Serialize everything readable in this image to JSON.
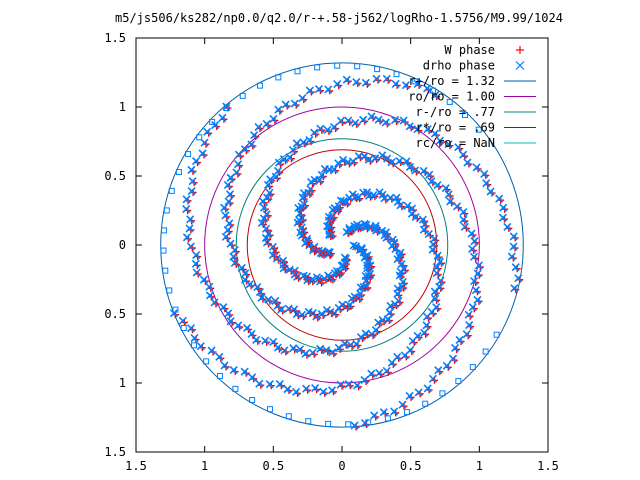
{
  "chart_data": {
    "type": "scatter",
    "title": "m5/js506/ks282/np0.0/q2.0/r-+.58-j562/logRho-1.5756/M9.99/1024",
    "xlabel": "",
    "ylabel": "",
    "xlim": [
      -1.5,
      1.5
    ],
    "ylim": [
      -1.5,
      1.5
    ],
    "x_ticks": [
      -1.5,
      -1,
      -0.5,
      0,
      0.5,
      1,
      1.5
    ],
    "x_tick_labels": [
      "1.5",
      "1",
      "0.5",
      "0",
      "0.5",
      "1",
      "1.5"
    ],
    "y_ticks": [
      1.5,
      1,
      0.5,
      0,
      -0.5,
      -1,
      -1.5
    ],
    "y_tick_labels": [
      "1.5",
      "1",
      "0.5",
      "0",
      "0.5",
      "1",
      "1.5"
    ],
    "grid": false,
    "legend_position": "top-right",
    "series": [
      {
        "name": "W phase",
        "kind": "points",
        "marker": "+",
        "color": "#ff0000",
        "description": "red plus markers tracing five trailing spiral arms from center r≈0.1 out to r≈1.3"
      },
      {
        "name": "drho phase",
        "kind": "points",
        "marker": "x",
        "color": "#0080ff",
        "description": "blue cross markers tracing the same five spiral arms, overlapping the W phase points"
      }
    ],
    "circles": [
      {
        "name": "r+/ro = 1.32",
        "radius": 1.32,
        "color": "#0060ad"
      },
      {
        "name": "ro/ro = 1.00",
        "radius": 1.0,
        "color": "#a000a0"
      },
      {
        "name": "r-/ro = .77",
        "radius": 0.77,
        "color": "#008080"
      },
      {
        "name": "r*/ro = .69",
        "radius": 0.69,
        "color": "#c00000"
      },
      {
        "name": "rc/ro = NaN",
        "radius": null,
        "color": "#00c0c0"
      }
    ],
    "spiral_arms": {
      "count": 5,
      "r_start": 0.1,
      "r_end": 1.3,
      "arm_start_angles_deg": [
        70,
        142,
        214,
        286,
        358
      ],
      "winding_deg": 300
    },
    "outer_markers": {
      "radius": 1.3,
      "from_deg": 40,
      "to_deg": 330,
      "count": 46,
      "color": "#0080ff"
    }
  }
}
